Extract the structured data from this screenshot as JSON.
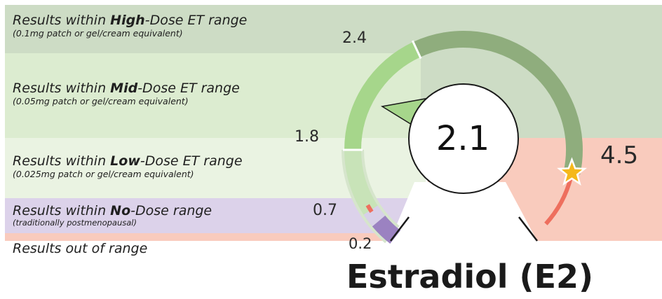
{
  "chart_data": {
    "type": "gauge",
    "title": "Estradiol (E2)",
    "value": 2.1,
    "value_label": "2.1",
    "marker_value": 4.5,
    "ticks": [
      {
        "value": 0.2,
        "label": "0.2"
      },
      {
        "value": 0.7,
        "label": "0.7"
      },
      {
        "value": 1.8,
        "label": "1.8"
      },
      {
        "value": 2.4,
        "label": "2.4"
      },
      {
        "value": 4.5,
        "label": "4.5"
      }
    ],
    "ranges": [
      {
        "key": "high",
        "from": 2.4,
        "to": 4.5,
        "color": "#8fad7d",
        "title_pre": "Results within ",
        "title_bold": "High",
        "title_post": "-Dose ET range",
        "subtitle": "(0.1mg patch or gel/cream equivalent)",
        "band_color": "#cddcc5"
      },
      {
        "key": "mid",
        "from": 1.8,
        "to": 2.4,
        "color": "#a6d68b",
        "title_pre": "Results within ",
        "title_bold": "Mid",
        "title_post": "-Dose ET range",
        "subtitle": "(0.05mg patch or gel/cream equivalent)",
        "band_color": "#dcecd0"
      },
      {
        "key": "low",
        "from": 0.7,
        "to": 1.8,
        "color": "#c8e3b8",
        "title_pre": "Results within ",
        "title_bold": "Low",
        "title_post": "-Dose ET range",
        "subtitle": "(0.025mg patch or gel/cream equivalent)",
        "band_color": "#eaf3e2"
      },
      {
        "key": "none",
        "from": 0.2,
        "to": 0.7,
        "color": "#9b82c1",
        "title_pre": "Results within ",
        "title_bold": "No",
        "title_post": "-Dose range",
        "subtitle": "(traditionally postmenopausal)",
        "band_color": "#dcd2ea"
      },
      {
        "key": "out",
        "from": null,
        "to": null,
        "color": "#ee6f5e",
        "title_pre": "Results out of range",
        "title_bold": "",
        "title_post": "",
        "subtitle": "",
        "band_color": "#f9cbbd"
      }
    ],
    "colors": {
      "needle": "#a6d68b",
      "star": "#f5b81b",
      "out_of_range": "#ee6f5e",
      "low_track_light": "#d6e5cc",
      "none_track_light": "#d8d0e9"
    }
  }
}
